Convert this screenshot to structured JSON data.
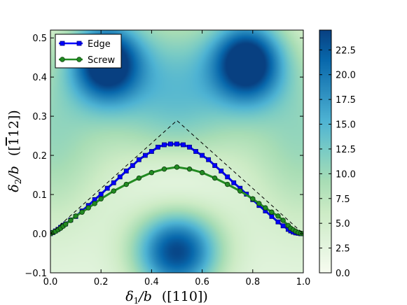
{
  "chart_data": {
    "type": "line",
    "background": "heatmap",
    "xlabel": "δ₁/b  ([110])",
    "ylabel": "δ₂/b  ([1̄12])",
    "xlim": [
      0.0,
      1.0
    ],
    "ylim": [
      -0.1,
      0.52
    ],
    "xticks": [
      "0.0",
      "0.2",
      "0.4",
      "0.6",
      "0.8",
      "1.0"
    ],
    "yticks": [
      "−0.1",
      "0.0",
      "0.1",
      "0.2",
      "0.3",
      "0.4",
      "0.5"
    ],
    "xtick_values": [
      0.0,
      0.2,
      0.4,
      0.6,
      0.8,
      1.0
    ],
    "ytick_values": [
      -0.1,
      0.0,
      0.1,
      0.2,
      0.3,
      0.4,
      0.5
    ],
    "colorbar": {
      "range": [
        0.0,
        24.5
      ],
      "ticks": [
        "0.0",
        "2.5",
        "5.0",
        "7.5",
        "10.0",
        "12.5",
        "15.0",
        "17.5",
        "20.0",
        "22.5"
      ],
      "tick_values": [
        0.0,
        2.5,
        5.0,
        7.5,
        10.0,
        12.5,
        15.0,
        17.5,
        20.0,
        22.5
      ],
      "colormap": "GnBu"
    },
    "legend": {
      "placement": "top-left"
    },
    "series": [
      {
        "name": "Edge",
        "color": "#0000ff",
        "marker": "square",
        "x": [
          0.0,
          0.01,
          0.02,
          0.03,
          0.04,
          0.05,
          0.06,
          0.08,
          0.1,
          0.125,
          0.15,
          0.175,
          0.2,
          0.225,
          0.25,
          0.275,
          0.3,
          0.325,
          0.35,
          0.375,
          0.4,
          0.425,
          0.45,
          0.475,
          0.5,
          0.525,
          0.55,
          0.575,
          0.6,
          0.625,
          0.65,
          0.675,
          0.7,
          0.725,
          0.75,
          0.775,
          0.8,
          0.825,
          0.85,
          0.875,
          0.9,
          0.92,
          0.94,
          0.95,
          0.96,
          0.97,
          0.98,
          0.99,
          1.0
        ],
        "y": [
          0.0,
          0.003,
          0.007,
          0.011,
          0.016,
          0.021,
          0.025,
          0.035,
          0.044,
          0.058,
          0.072,
          0.087,
          0.101,
          0.116,
          0.13,
          0.145,
          0.16,
          0.174,
          0.189,
          0.2,
          0.21,
          0.221,
          0.227,
          0.229,
          0.229,
          0.227,
          0.221,
          0.21,
          0.2,
          0.189,
          0.174,
          0.16,
          0.145,
          0.13,
          0.116,
          0.101,
          0.087,
          0.072,
          0.058,
          0.044,
          0.03,
          0.02,
          0.011,
          0.007,
          0.004,
          0.002,
          0.001,
          0.0,
          0.0
        ]
      },
      {
        "name": "Screw",
        "color": "#228b22",
        "marker": "circle",
        "x": [
          0.0,
          0.01,
          0.02,
          0.03,
          0.04,
          0.05,
          0.06,
          0.08,
          0.1,
          0.125,
          0.15,
          0.175,
          0.2,
          0.25,
          0.3,
          0.35,
          0.4,
          0.45,
          0.5,
          0.55,
          0.6,
          0.65,
          0.7,
          0.75,
          0.8,
          0.825,
          0.85,
          0.875,
          0.9,
          0.92,
          0.94,
          0.95,
          0.96,
          0.97,
          0.98,
          0.99,
          1.0
        ],
        "y": [
          0.0,
          0.003,
          0.006,
          0.01,
          0.014,
          0.019,
          0.024,
          0.034,
          0.045,
          0.055,
          0.066,
          0.077,
          0.089,
          0.109,
          0.126,
          0.142,
          0.156,
          0.165,
          0.17,
          0.165,
          0.156,
          0.142,
          0.126,
          0.109,
          0.089,
          0.077,
          0.066,
          0.055,
          0.045,
          0.034,
          0.021,
          0.014,
          0.01,
          0.006,
          0.003,
          0.001,
          0.0
        ]
      },
      {
        "name": "",
        "color": "#000000",
        "marker": "none",
        "style": "dashed",
        "x": [
          0.0,
          0.5,
          1.0
        ],
        "y": [
          0.0,
          0.289,
          0.0
        ]
      }
    ]
  }
}
